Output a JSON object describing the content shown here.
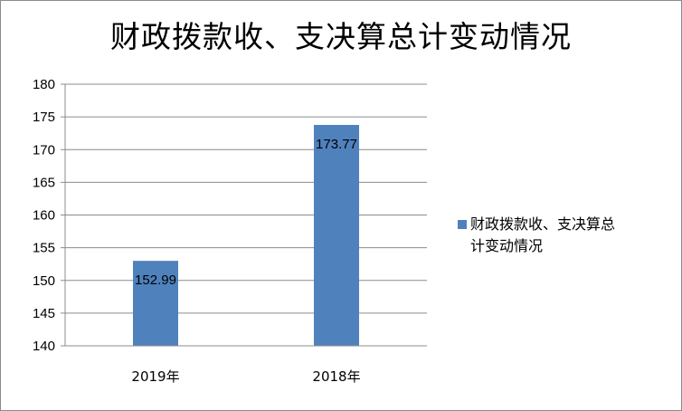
{
  "chart_data": {
    "type": "bar",
    "title": "财政拨款收、支决算总计变动情况",
    "categories": [
      "2019年",
      "2018年"
    ],
    "series": [
      {
        "name": "财政拨款收、支决算总计变动情况",
        "values": [
          152.99,
          173.77
        ],
        "data_labels": [
          "152.99",
          "173.77"
        ],
        "color": "#4f81bd"
      }
    ],
    "ylim": [
      140,
      180
    ],
    "yticks": [
      140,
      145,
      150,
      155,
      160,
      165,
      170,
      175,
      180
    ],
    "ytick_labels": [
      "140",
      "145",
      "150",
      "155",
      "160",
      "165",
      "170",
      "175",
      "180"
    ],
    "grid": "horizontal",
    "legend_position": "right"
  },
  "legend": {
    "line1": "财政拨款收、支决算总",
    "line2": "计变动情况"
  }
}
